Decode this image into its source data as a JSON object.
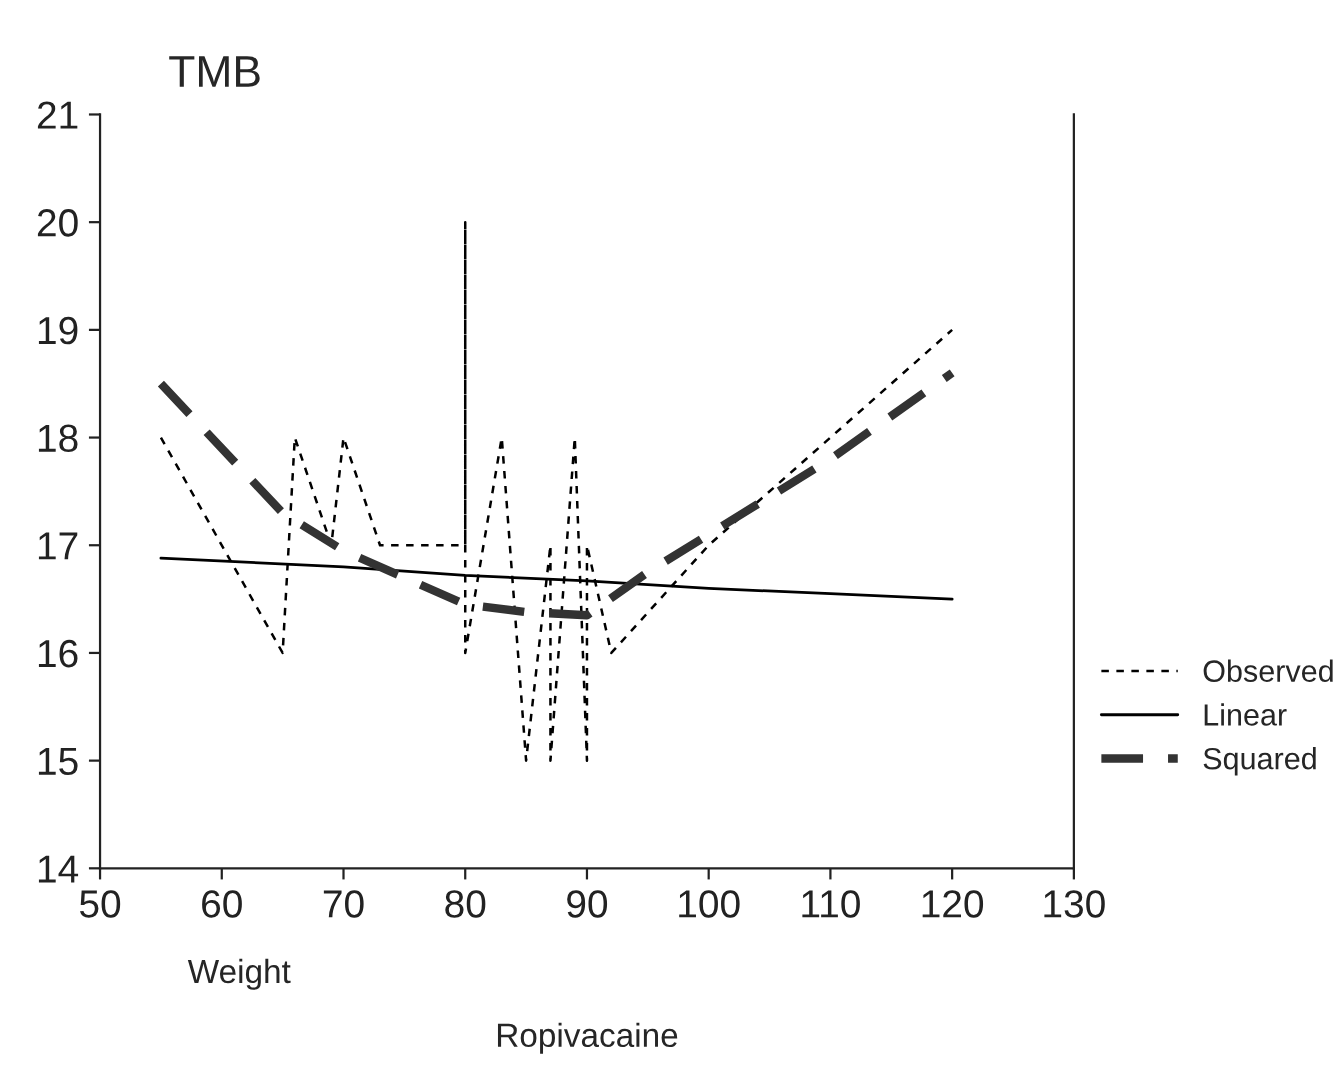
{
  "chart_data": {
    "type": "line",
    "title": "TMB",
    "xlabel": "Ropivacaine",
    "annotations": [
      "Weight"
    ],
    "xlim": [
      50,
      130
    ],
    "xticks": [
      50,
      60,
      70,
      80,
      90,
      100,
      110,
      120,
      130
    ],
    "ylim": [
      14,
      21
    ],
    "yticks": [
      14,
      15,
      16,
      17,
      18,
      19,
      20,
      21
    ],
    "grid": false,
    "legend": "right",
    "series": [
      {
        "name": "Observed",
        "color": "#000000",
        "line_style": "dotted",
        "x": [
          55,
          65,
          66,
          69,
          70,
          73,
          80,
          80,
          80,
          83,
          85,
          87,
          87,
          89,
          90,
          90,
          92,
          100,
          110,
          120
        ],
        "values": [
          18,
          16,
          18,
          17,
          18,
          17,
          17,
          20,
          16,
          18,
          15,
          17,
          15,
          18,
          15,
          17,
          16,
          17,
          18,
          19
        ]
      },
      {
        "name": "Linear",
        "color": "#000000",
        "line_style": "solid",
        "x": [
          55,
          70,
          80,
          90,
          100,
          110,
          120
        ],
        "values": [
          16.88,
          16.8,
          16.72,
          16.67,
          16.6,
          16.55,
          16.5
        ]
      },
      {
        "name": "Squared",
        "color": "#333333",
        "line_style": "dashed",
        "x": [
          55,
          65,
          70,
          80,
          85,
          90,
          95,
          100,
          110,
          120
        ],
        "values": [
          18.5,
          17.3,
          16.95,
          16.45,
          16.38,
          16.35,
          16.75,
          17.1,
          17.8,
          18.6
        ]
      }
    ]
  }
}
